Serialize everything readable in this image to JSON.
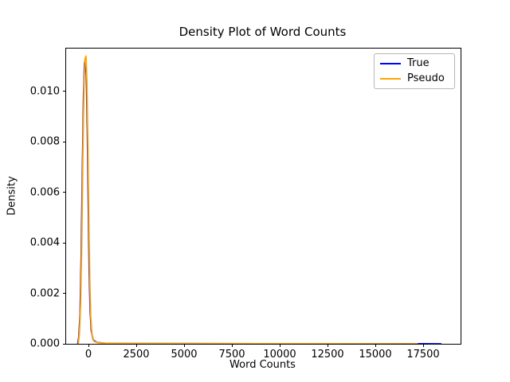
{
  "chart_data": {
    "type": "line",
    "title": "Density Plot of Word Counts",
    "xlabel": "Word Counts",
    "ylabel": "Density",
    "xlim": [
      -1167,
      19458
    ],
    "ylim": [
      0,
      0.0117
    ],
    "grid": false,
    "xticks": {
      "values": [
        0,
        2500,
        5000,
        7500,
        10000,
        12500,
        15000,
        17500
      ],
      "labels": [
        "0",
        "2500",
        "5000",
        "7500",
        "10000",
        "12500",
        "15000",
        "17500"
      ]
    },
    "yticks": {
      "values": [
        0.0,
        0.002,
        0.004,
        0.006,
        0.008,
        0.01
      ],
      "labels": [
        "0.000",
        "0.002",
        "0.004",
        "0.006",
        "0.008",
        "0.010"
      ]
    },
    "legend": {
      "position": "upper right",
      "entries": [
        "True",
        "Pseudo"
      ]
    },
    "series": [
      {
        "name": "True",
        "color": "#0000ff",
        "peak": {
          "x": -150,
          "density": 0.0113
        },
        "points": [
          [
            -560,
            0.0
          ],
          [
            -500,
            0.0003
          ],
          [
            -440,
            0.0012
          ],
          [
            -380,
            0.0035
          ],
          [
            -320,
            0.0068
          ],
          [
            -260,
            0.0098
          ],
          [
            -210,
            0.0111
          ],
          [
            -160,
            0.0113
          ],
          [
            -110,
            0.0106
          ],
          [
            -60,
            0.0085
          ],
          [
            -10,
            0.0055
          ],
          [
            40,
            0.0028
          ],
          [
            90,
            0.0013
          ],
          [
            150,
            0.0005
          ],
          [
            250,
            0.00015
          ],
          [
            450,
            5e-05
          ],
          [
            900,
            2e-05
          ],
          [
            2000,
            1e-05
          ],
          [
            9000,
            5e-06
          ],
          [
            16500,
            4e-06
          ],
          [
            17500,
            4e-06
          ],
          [
            18430,
            0.0
          ]
        ]
      },
      {
        "name": "Pseudo",
        "color": "#ffa500",
        "peak": {
          "x": -120,
          "density": 0.0114
        },
        "points": [
          [
            -530,
            0.0
          ],
          [
            -470,
            0.0004
          ],
          [
            -410,
            0.0016
          ],
          [
            -350,
            0.004
          ],
          [
            -290,
            0.0075
          ],
          [
            -230,
            0.0103
          ],
          [
            -180,
            0.0113
          ],
          [
            -130,
            0.0114
          ],
          [
            -80,
            0.0104
          ],
          [
            -30,
            0.008
          ],
          [
            20,
            0.005
          ],
          [
            70,
            0.0025
          ],
          [
            120,
            0.0011
          ],
          [
            180,
            0.0004
          ],
          [
            280,
            0.0001
          ],
          [
            500,
            4e-05
          ],
          [
            1000,
            2e-05
          ],
          [
            3000,
            1e-05
          ],
          [
            10000,
            5e-06
          ],
          [
            17200,
            0.0
          ]
        ]
      }
    ]
  }
}
